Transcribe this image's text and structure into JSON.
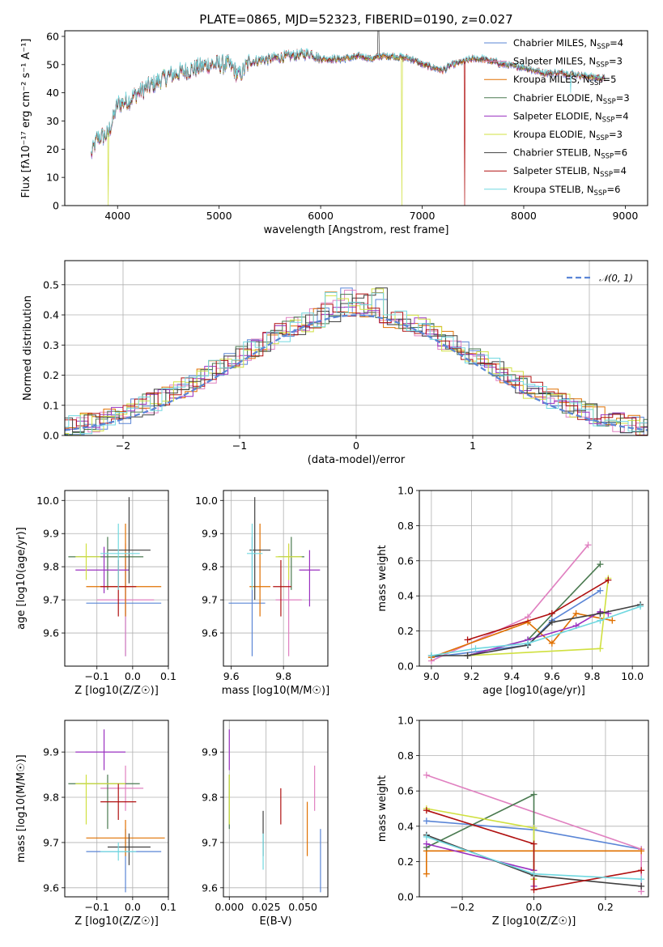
{
  "figure_title": "PLATE=0865, MJD=52323, FIBERID=0190, z=0.027",
  "colors": {
    "Chabrier MILES": "#5a85d6",
    "Salpeter MILES": "#e080c0",
    "Kroupa MILES": "#e07000",
    "Chabrier ELODIE": "#4a7a50",
    "Salpeter ELODIE": "#9a30c0",
    "Kroupa ELODIE": "#d0e040",
    "Chabrier STELIB": "#404040",
    "Salpeter STELIB": "#b01010",
    "Kroupa STELIB": "#70d8e0"
  },
  "chart_data": [
    {
      "id": "spectrum",
      "type": "line",
      "title": "PLATE=0865, MJD=52323, FIBERID=0190, z=0.027",
      "xlabel": "wavelength [Angstrom, rest frame]",
      "ylabel": "Flux [fλ10⁻¹⁷ erg cm⁻² s⁻¹ A⁻¹]",
      "xlim": [
        3480,
        9220
      ],
      "ylim": [
        0,
        62
      ],
      "xticks": [
        4000,
        5000,
        6000,
        7000,
        8000,
        9000
      ],
      "yticks": [
        0,
        10,
        20,
        30,
        40,
        50,
        60
      ],
      "legend_position": "top-right",
      "legend": [
        "Chabrier MILES, N_SSP=4",
        "Salpeter MILES, N_SSP=3",
        "Kroupa MILES, N_SSP=5",
        "Chabrier ELODIE, N_SSP=3",
        "Salpeter ELODIE, N_SSP=4",
        "Kroupa ELODIE, N_SSP=3",
        "Chabrier STELIB, N_SSP=6",
        "Salpeter STELIB, N_SSP=4",
        "Kroupa STELIB, N_SSP=6"
      ],
      "continuum_x": [
        3740,
        3800,
        3900,
        3950,
        4000,
        4100,
        4200,
        4300,
        4400,
        4500,
        4700,
        4900,
        5100,
        5200,
        5300,
        5500,
        5700,
        5900,
        6000,
        6200,
        6400,
        6500,
        6600,
        6700,
        6900,
        7000,
        7100,
        7200,
        7300,
        7400,
        7500,
        7600,
        7800,
        8000,
        8200,
        8400,
        8600,
        8800
      ],
      "continuum_y": [
        18,
        24,
        25,
        30,
        36,
        37,
        40,
        42,
        44,
        46,
        48,
        50,
        50,
        46,
        51,
        52,
        53,
        54,
        52,
        52,
        53,
        52,
        53,
        53,
        52,
        50,
        49,
        48,
        50,
        51,
        52,
        52,
        50,
        49,
        47,
        47,
        46,
        45
      ],
      "drops_to_zero": {
        "Kroupa ELODIE": [
          3910,
          6800
        ],
        "Salpeter STELIB": [
          7420
        ]
      }
    },
    {
      "id": "residual_histogram",
      "type": "histogram",
      "xlabel": "(data-model)/error",
      "ylabel": "Normed distribution",
      "xlim": [
        -2.5,
        2.5
      ],
      "ylim": [
        0,
        0.58
      ],
      "xticks": [
        -2,
        -1,
        0,
        1,
        2
      ],
      "yticks": [
        0.0,
        0.1,
        0.2,
        0.3,
        0.4,
        0.5
      ],
      "bin_width": 0.1,
      "series": [
        {
          "name": "𝒩(0, 1)",
          "style": "dashed",
          "values": "normal pdf mean 0 sigma 1"
        }
      ],
      "legend_position": "top-right"
    },
    {
      "id": "age_vs_Z",
      "type": "errorbar",
      "xlabel": "Z [log10(Z/Z☉)]",
      "ylabel": "age [log10(age/yr)]",
      "xlim": [
        -0.19,
        0.1
      ],
      "ylim": [
        9.5,
        10.03
      ],
      "xticks": [
        -0.1,
        0.0,
        0.1
      ],
      "yticks": [
        9.6,
        9.7,
        9.8,
        9.9,
        10.0
      ],
      "points": [
        {
          "model": "Chabrier MILES",
          "x": -0.02,
          "xerr": [
            0.11,
            0.1
          ],
          "y": 9.69,
          "yerr": [
            0.16,
            0.15
          ]
        },
        {
          "model": "Salpeter MILES",
          "x": -0.02,
          "xerr": [
            0.08,
            0.08
          ],
          "y": 9.7,
          "yerr": [
            0.17,
            0.17
          ]
        },
        {
          "model": "Kroupa MILES",
          "x": -0.02,
          "xerr": [
            0.11,
            0.1
          ],
          "y": 9.74,
          "yerr": [
            0.09,
            0.19
          ]
        },
        {
          "model": "Chabrier ELODIE",
          "x": -0.07,
          "xerr": [
            0.11,
            0.1
          ],
          "y": 9.83,
          "yerr": [
            0.1,
            0.06
          ]
        },
        {
          "model": "Salpeter ELODIE",
          "x": -0.08,
          "xerr": [
            0.08,
            0.07
          ],
          "y": 9.79,
          "yerr": [
            0.07,
            0.07
          ]
        },
        {
          "model": "Kroupa ELODIE",
          "x": -0.13,
          "xerr": [
            0.03,
            0.04
          ],
          "y": 9.83,
          "yerr": [
            0.07,
            0.04
          ]
        },
        {
          "model": "Chabrier STELIB",
          "x": -0.01,
          "xerr": [
            0.06,
            0.06
          ],
          "y": 9.85,
          "yerr": [
            0.1,
            0.16
          ]
        },
        {
          "model": "Salpeter STELIB",
          "x": -0.04,
          "xerr": [
            0.05,
            0.05
          ],
          "y": 9.74,
          "yerr": [
            0.09,
            0.08
          ]
        },
        {
          "model": "Kroupa STELIB",
          "x": -0.04,
          "xerr": [
            0.05,
            0.06
          ],
          "y": 9.84,
          "yerr": [
            0.11,
            0.09
          ]
        }
      ]
    },
    {
      "id": "age_vs_mass",
      "type": "errorbar",
      "xlabel": "mass [log10(M/M☉)]",
      "ylabel": "",
      "xlim": [
        9.57,
        9.97
      ],
      "ylim": [
        9.5,
        10.03
      ],
      "xticks": [
        9.6,
        9.8
      ],
      "yticks": [
        9.6,
        9.7,
        9.8,
        9.9,
        10.0
      ],
      "points": [
        {
          "model": "Chabrier MILES",
          "x": 9.68,
          "xerr": [
            0.09,
            0.05
          ],
          "y": 9.69,
          "yerr": [
            0.16,
            0.2
          ]
        },
        {
          "model": "Salpeter MILES",
          "x": 9.82,
          "xerr": [
            0.05,
            0.05
          ],
          "y": 9.7,
          "yerr": [
            0.17,
            0.17
          ]
        },
        {
          "model": "Kroupa MILES",
          "x": 9.71,
          "xerr": [
            0.04,
            0.04
          ],
          "y": 9.74,
          "yerr": [
            0.09,
            0.19
          ]
        },
        {
          "model": "Chabrier ELODIE",
          "x": 9.83,
          "xerr": [
            0.05,
            0.05
          ],
          "y": 9.83,
          "yerr": [
            0.1,
            0.06
          ]
        },
        {
          "model": "Salpeter ELODIE",
          "x": 9.9,
          "xerr": [
            0.04,
            0.04
          ],
          "y": 9.79,
          "yerr": [
            0.11,
            0.06
          ]
        },
        {
          "model": "Kroupa ELODIE",
          "x": 9.82,
          "xerr": [
            0.05,
            0.05
          ],
          "y": 9.83,
          "yerr": [
            0.07,
            0.04
          ]
        },
        {
          "model": "Chabrier STELIB",
          "x": 9.69,
          "xerr": [
            0.02,
            0.06
          ],
          "y": 9.85,
          "yerr": [
            0.15,
            0.16
          ]
        },
        {
          "model": "Salpeter STELIB",
          "x": 9.79,
          "xerr": [
            0.03,
            0.04
          ],
          "y": 9.74,
          "yerr": [
            0.09,
            0.08
          ]
        },
        {
          "model": "Kroupa STELIB",
          "x": 9.68,
          "xerr": [
            0.02,
            0.04
          ],
          "y": 9.84,
          "yerr": [
            0.11,
            0.09
          ]
        }
      ]
    },
    {
      "id": "massweight_vs_age",
      "type": "line",
      "xlabel": "age [log10(age/yr)]",
      "ylabel": "mass weight",
      "xlim": [
        8.94,
        10.08
      ],
      "ylim": [
        0,
        1
      ],
      "xticks": [
        9.0,
        9.2,
        9.4,
        9.6,
        9.8,
        10.0
      ],
      "yticks": [
        0.0,
        0.2,
        0.4,
        0.6,
        0.8,
        1.0
      ],
      "series": [
        {
          "model": "Chabrier MILES",
          "x": [
            9.0,
            9.48,
            9.6,
            9.84
          ],
          "y": [
            0.05,
            0.12,
            0.26,
            0.43
          ]
        },
        {
          "model": "Salpeter MILES",
          "x": [
            9.0,
            9.48,
            9.78
          ],
          "y": [
            0.03,
            0.28,
            0.69
          ]
        },
        {
          "model": "Kroupa MILES",
          "x": [
            9.0,
            9.48,
            9.6,
            9.72,
            9.9
          ],
          "y": [
            0.05,
            0.25,
            0.13,
            0.3,
            0.26
          ]
        },
        {
          "model": "Chabrier ELODIE",
          "x": [
            9.18,
            9.48,
            9.84
          ],
          "y": [
            0.06,
            0.15,
            0.58
          ]
        },
        {
          "model": "Salpeter ELODIE",
          "x": [
            9.18,
            9.48,
            9.72,
            9.84,
            9.88
          ],
          "y": [
            0.06,
            0.15,
            0.23,
            0.31,
            0.3
          ]
        },
        {
          "model": "Kroupa ELODIE",
          "x": [
            9.18,
            9.84,
            9.88
          ],
          "y": [
            0.06,
            0.1,
            0.5
          ]
        },
        {
          "model": "Chabrier STELIB",
          "x": [
            9.0,
            9.18,
            9.48,
            9.6,
            9.84,
            10.04
          ],
          "y": [
            0.06,
            0.06,
            0.12,
            0.25,
            0.3,
            0.35
          ]
        },
        {
          "model": "Salpeter STELIB",
          "x": [
            9.18,
            9.6,
            9.88
          ],
          "y": [
            0.15,
            0.3,
            0.49
          ]
        },
        {
          "model": "Kroupa STELIB",
          "x": [
            9.0,
            9.22,
            9.48,
            9.84,
            10.04
          ],
          "y": [
            0.06,
            0.1,
            0.13,
            0.26,
            0.34
          ]
        }
      ]
    },
    {
      "id": "mass_vs_Z",
      "type": "errorbar",
      "xlabel": "Z [log10(Z/Z☉)]",
      "ylabel": "mass [log10(M/M☉)]",
      "xlim": [
        -0.19,
        0.1
      ],
      "ylim": [
        9.58,
        9.97
      ],
      "xticks": [
        -0.1,
        0.0,
        0.1
      ],
      "yticks": [
        9.6,
        9.7,
        9.8,
        9.9
      ],
      "points": [
        {
          "model": "Chabrier MILES",
          "x": -0.02,
          "xerr": [
            0.11,
            0.1
          ],
          "y": 9.68,
          "yerr": [
            0.09,
            0.05
          ]
        },
        {
          "model": "Salpeter MILES",
          "x": -0.02,
          "xerr": [
            0.07,
            0.05
          ],
          "y": 9.82,
          "yerr": [
            0.05,
            0.05
          ]
        },
        {
          "model": "Kroupa MILES",
          "x": -0.02,
          "xerr": [
            0.11,
            0.11
          ],
          "y": 9.71,
          "yerr": [
            0.04,
            0.04
          ]
        },
        {
          "model": "Chabrier ELODIE",
          "x": -0.07,
          "xerr": [
            0.11,
            0.09
          ],
          "y": 9.83,
          "yerr": [
            0.1,
            0.02
          ]
        },
        {
          "model": "Salpeter ELODIE",
          "x": -0.08,
          "xerr": [
            0.08,
            0.06
          ],
          "y": 9.9,
          "yerr": [
            0.04,
            0.05
          ]
        },
        {
          "model": "Kroupa ELODIE",
          "x": -0.13,
          "xerr": [
            0.03,
            0.11
          ],
          "y": 9.83,
          "yerr": [
            0.09,
            0.02
          ]
        },
        {
          "model": "Chabrier STELIB",
          "x": -0.01,
          "xerr": [
            0.06,
            0.06
          ],
          "y": 9.69,
          "yerr": [
            0.04,
            0.03
          ]
        },
        {
          "model": "Salpeter STELIB",
          "x": -0.04,
          "xerr": [
            0.05,
            0.05
          ],
          "y": 9.79,
          "yerr": [
            0.04,
            0.04
          ]
        },
        {
          "model": "Kroupa STELIB",
          "x": -0.04,
          "xerr": [
            0.05,
            0.05
          ],
          "y": 9.68,
          "yerr": [
            0.02,
            0.02
          ]
        }
      ]
    },
    {
      "id": "mass_vs_ebv",
      "type": "errorbar",
      "xlabel": "E(B-V)",
      "ylabel": "",
      "xlim": [
        -0.004,
        0.067
      ],
      "ylim": [
        9.58,
        9.97
      ],
      "xticks": [
        0.0,
        0.025,
        0.05
      ],
      "yticks": [
        9.6,
        9.7,
        9.8,
        9.9
      ],
      "points": [
        {
          "model": "Chabrier MILES",
          "x": 0.062,
          "yerr": [
            0.09,
            0.05
          ],
          "y": 9.68
        },
        {
          "model": "Salpeter MILES",
          "x": 0.058,
          "yerr": [
            0.05,
            0.05
          ],
          "y": 9.82
        },
        {
          "model": "Kroupa MILES",
          "x": 0.053,
          "yerr": [
            0.06,
            0.06
          ],
          "y": 9.73
        },
        {
          "model": "Chabrier ELODIE",
          "x": 0.0,
          "yerr": [
            0.1,
            0.02
          ],
          "y": 9.83
        },
        {
          "model": "Salpeter ELODIE",
          "x": 0.0,
          "yerr": [
            0.04,
            0.05
          ],
          "y": 9.9
        },
        {
          "model": "Kroupa ELODIE",
          "x": 0.0,
          "yerr": [
            0.09,
            0.02
          ],
          "y": 9.83
        },
        {
          "model": "Chabrier STELIB",
          "x": 0.023,
          "yerr": [
            0.04,
            0.06
          ],
          "y": 9.71
        },
        {
          "model": "Salpeter STELIB",
          "x": 0.035,
          "yerr": [
            0.04,
            0.04
          ],
          "y": 9.78
        },
        {
          "model": "Kroupa STELIB",
          "x": 0.023,
          "yerr": [
            0.04,
            0.04
          ],
          "y": 9.68
        }
      ]
    },
    {
      "id": "massweight_vs_Z",
      "type": "line",
      "xlabel": "Z [log10(Z/Z☉)]",
      "ylabel": "mass weight",
      "xlim": [
        -0.32,
        0.32
      ],
      "ylim": [
        0,
        1
      ],
      "xticks": [
        -0.2,
        0.0,
        0.2
      ],
      "yticks": [
        0.0,
        0.2,
        0.4,
        0.6,
        0.8,
        1.0
      ],
      "series": [
        {
          "model": "Chabrier MILES",
          "x": [
            -0.3,
            0.0,
            0.3
          ],
          "y": [
            0.43,
            0.38,
            0.27
          ]
        },
        {
          "model": "Salpeter MILES",
          "x": [
            -0.3,
            0.3,
            0.3
          ],
          "y": [
            0.69,
            0.27,
            0.03
          ]
        },
        {
          "model": "Kroupa MILES",
          "x": [
            -0.3,
            -0.3,
            0.0,
            0.3
          ],
          "y": [
            0.13,
            0.26,
            0.26,
            0.26
          ]
        },
        {
          "model": "Chabrier ELODIE",
          "x": [
            -0.3,
            0.0,
            0.0
          ],
          "y": [
            0.28,
            0.58,
            0.1
          ]
        },
        {
          "model": "Salpeter ELODIE",
          "x": [
            -0.3,
            0.0,
            0.0
          ],
          "y": [
            0.3,
            0.15,
            0.06
          ]
        },
        {
          "model": "Kroupa ELODIE",
          "x": [
            -0.3,
            0.0,
            0.0
          ],
          "y": [
            0.5,
            0.39,
            0.1
          ]
        },
        {
          "model": "Chabrier STELIB",
          "x": [
            -0.3,
            0.0,
            0.3
          ],
          "y": [
            0.35,
            0.12,
            0.06
          ]
        },
        {
          "model": "Salpeter STELIB",
          "x": [
            -0.3,
            0.0,
            0.0,
            0.3
          ],
          "y": [
            0.49,
            0.3,
            0.04,
            0.15
          ]
        },
        {
          "model": "Kroupa STELIB",
          "x": [
            -0.3,
            0.0,
            0.3
          ],
          "y": [
            0.34,
            0.13,
            0.1
          ]
        }
      ]
    }
  ]
}
